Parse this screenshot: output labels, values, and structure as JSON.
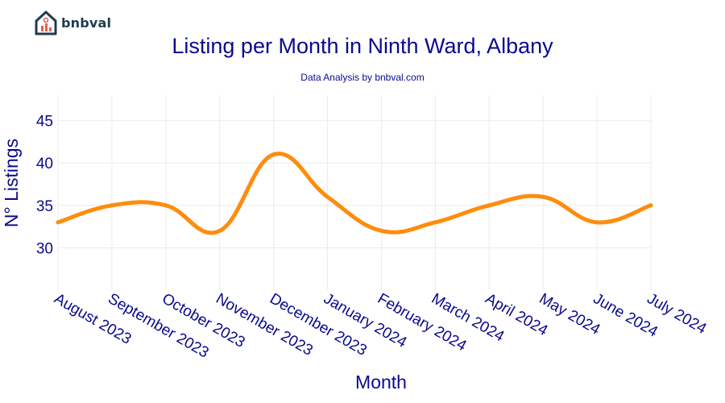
{
  "brand": {
    "name": "bnbval"
  },
  "colors": {
    "line": "#ff8c0d",
    "text": "#0a0a8c",
    "grid": "#ececec"
  },
  "chart_data": {
    "type": "line",
    "title": "Listing per Month in Ninth Ward, Albany",
    "subtitle": "Data Analysis by bnbval.com",
    "xlabel": "Month",
    "ylabel": "N° Listings",
    "categories": [
      "August 2023",
      "September 2023",
      "October 2023",
      "November 2023",
      "December 2023",
      "January 2024",
      "February 2024",
      "March 2024",
      "April 2024",
      "May 2024",
      "June 2024",
      "July 2024"
    ],
    "series": [
      {
        "values": [
          33,
          35,
          35,
          32,
          41,
          36,
          32,
          33,
          35,
          36,
          33,
          35
        ]
      }
    ],
    "ylim": [
      25,
      48
    ],
    "yticks": [
      30,
      35,
      40,
      45
    ],
    "grid": true,
    "smooth": true
  }
}
